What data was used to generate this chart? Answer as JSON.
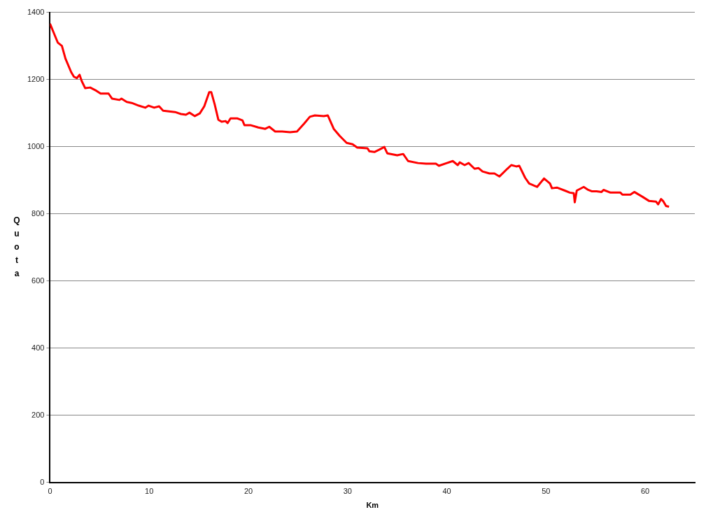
{
  "chart_data": {
    "type": "line",
    "xlabel": "Km",
    "ylabel": "Quota",
    "xlim": [
      0,
      65
    ],
    "xticks": [
      0,
      10,
      20,
      30,
      40,
      50,
      60
    ],
    "ylim": [
      0,
      1400
    ],
    "yticks": [
      0,
      200,
      400,
      600,
      800,
      1000,
      1200,
      1400
    ],
    "grid": "y",
    "legend": false,
    "marker": "none",
    "line_style": "solid",
    "series": [
      {
        "color": "#ff0000",
        "x": [
          0,
          0.43,
          0.78,
          1.2,
          1.56,
          2.13,
          2.41,
          2.7,
          2.98,
          3.2,
          3.55,
          4.05,
          4.69,
          5.1,
          5.9,
          6.25,
          7.0,
          7.2,
          7.74,
          8.24,
          8.95,
          9.6,
          9.94,
          10.5,
          11.0,
          11.4,
          12.6,
          13.2,
          13.7,
          14.06,
          14.6,
          15.1,
          15.55,
          16.05,
          16.26,
          16.6,
          16.97,
          17.3,
          17.7,
          17.9,
          18.2,
          18.9,
          19.4,
          19.6,
          20.2,
          21.0,
          21.7,
          22.1,
          22.7,
          23.4,
          24.2,
          24.9,
          25.6,
          26.2,
          26.7,
          27.6,
          28.0,
          28.6,
          29.2,
          29.9,
          30.5,
          30.97,
          32.0,
          32.2,
          32.7,
          33.2,
          33.7,
          34.0,
          35.0,
          35.6,
          36.1,
          37.1,
          37.9,
          38.9,
          39.2,
          40.0,
          40.6,
          41.1,
          41.3,
          41.8,
          42.2,
          42.8,
          43.2,
          43.6,
          44.3,
          44.8,
          45.3,
          46.1,
          46.5,
          47.0,
          47.3,
          47.9,
          48.3,
          49.1,
          49.8,
          50.4,
          50.6,
          51.1,
          51.9,
          52.4,
          52.8,
          52.9,
          53.1,
          53.8,
          54.2,
          54.6,
          55.1,
          55.6,
          55.8,
          56.5,
          57.5,
          57.7,
          58.5,
          58.9,
          59.7,
          60.4,
          61.1,
          61.3,
          61.6,
          61.8,
          62.1,
          62.4
        ],
        "values": [
          1366,
          1335,
          1310,
          1300,
          1262,
          1222,
          1208,
          1204,
          1214,
          1195,
          1174,
          1176,
          1166,
          1158,
          1158,
          1143,
          1139,
          1143,
          1133,
          1130,
          1122,
          1116,
          1122,
          1116,
          1120,
          1107,
          1103,
          1097,
          1095,
          1101,
          1091,
          1099,
          1120,
          1162,
          1162,
          1126,
          1080,
          1074,
          1076,
          1070,
          1084,
          1084,
          1078,
          1064,
          1064,
          1057,
          1053,
          1059,
          1045,
          1045,
          1043,
          1045,
          1068,
          1089,
          1093,
          1091,
          1093,
          1053,
          1032,
          1011,
          1007,
          997,
          995,
          986,
          984,
          991,
          999,
          980,
          974,
          978,
          957,
          951,
          949,
          949,
          943,
          951,
          957,
          945,
          953,
          945,
          951,
          934,
          936,
          926,
          920,
          920,
          911,
          934,
          945,
          941,
          943,
          907,
          890,
          880,
          905,
          890,
          876,
          878,
          869,
          863,
          861,
          834,
          869,
          880,
          872,
          867,
          867,
          865,
          871,
          863,
          863,
          857,
          857,
          865,
          851,
          838,
          836,
          828,
          844,
          838,
          823,
          821
        ]
      }
    ]
  }
}
